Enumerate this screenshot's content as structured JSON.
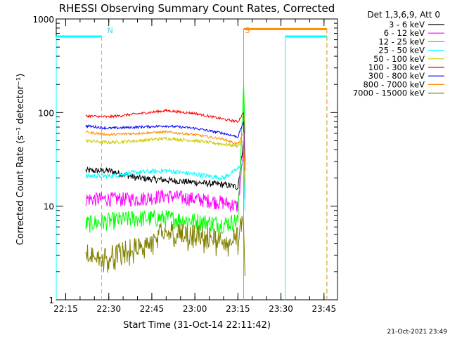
{
  "chart_data": {
    "type": "line",
    "title": "RHESSI Observing Summary Count Rates, Corrected",
    "xlabel": "Start Time (31-Oct-14 22:11:42)",
    "ylabel": "Corrected Count Rate (s⁻¹ detector⁻¹)",
    "yscale": "log",
    "xlim": [
      "22:11:42",
      "23:49:42"
    ],
    "ylim": [
      1,
      1000
    ],
    "x_ticks": [
      "22:15",
      "22:30",
      "22:45",
      "23:00",
      "23:15",
      "23:30",
      "23:45"
    ],
    "y_ticks": [
      "1",
      "10",
      "100",
      "1000"
    ],
    "legend_title": "Det 1,3,6,9, Att 0",
    "legend_position": "outside-right",
    "footer": "21-Oct-2021 23:49",
    "annotations": [
      {
        "text": "N",
        "time": "22:29",
        "color": "#3fd7e0"
      },
      {
        "text": "S",
        "time": "23:17",
        "color": "#e8922e"
      }
    ],
    "bars": [
      {
        "label": "night",
        "color": "#00ffff",
        "level": 650,
        "segments": [
          [
            "22:11:42",
            "22:27:30"
          ],
          [
            "23:31:30",
            "23:46:00"
          ]
        ]
      },
      {
        "label": "saa",
        "color": "#ff8c00",
        "level": 780,
        "segments": [
          [
            "23:17:00",
            "23:46:00"
          ]
        ]
      }
    ],
    "data_gap": [
      "22:11:42",
      "22:22:30"
    ],
    "x": [
      "22:22",
      "22:30",
      "22:40",
      "22:50",
      "23:00",
      "23:10",
      "23:15",
      "23:17"
    ],
    "series": [
      {
        "name": "3 - 6 keV",
        "color": "#000000",
        "values": [
          null,
          24,
          20,
          19,
          18,
          17,
          16,
          50
        ]
      },
      {
        "name": "6 - 12 keV",
        "color": "#ff00ff",
        "values": [
          null,
          12,
          12,
          13,
          12,
          11,
          10,
          40
        ]
      },
      {
        "name": "12 - 25 keV",
        "color": "#00ff00",
        "values": [
          6.5,
          7,
          7.5,
          7.5,
          7,
          6.5,
          7,
          200
        ]
      },
      {
        "name": "25 - 50 keV",
        "color": "#00ffff",
        "values": [
          21,
          21,
          23,
          24,
          22,
          20,
          25,
          30
        ]
      },
      {
        "name": "50 - 100 keV",
        "color": "#cccc00",
        "values": [
          50,
          48,
          50,
          53,
          50,
          46,
          44,
          50
        ]
      },
      {
        "name": "100 - 300 keV",
        "color": "#ff0000",
        "values": [
          92,
          90,
          97,
          105,
          98,
          85,
          80,
          100
        ]
      },
      {
        "name": "300 - 800 keV",
        "color": "#0000ff",
        "values": [
          72,
          68,
          70,
          72,
          68,
          60,
          55,
          80
        ]
      },
      {
        "name": "800 - 7000 keV",
        "color": "#ff8c00",
        "values": [
          62,
          58,
          60,
          62,
          58,
          52,
          46,
          60
        ]
      },
      {
        "name": "7000 - 15000 keV",
        "color": "#808000",
        "values": [
          2.5,
          2.4,
          3,
          4.5,
          4,
          3.6,
          3.8,
          6
        ]
      }
    ]
  }
}
